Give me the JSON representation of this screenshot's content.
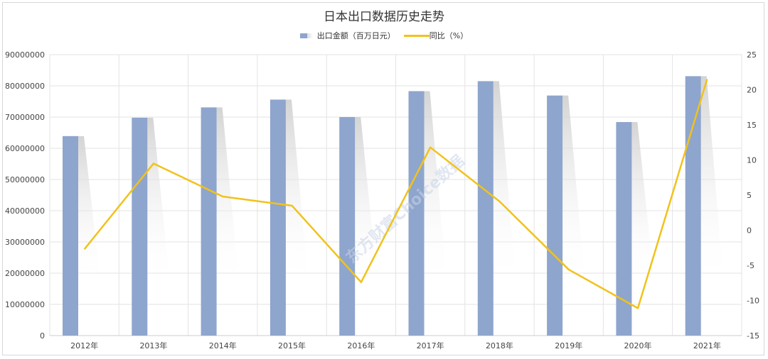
{
  "chart_data": {
    "type": "bar+line",
    "title": "日本出口数据历史走势",
    "categories": [
      "2012年",
      "2013年",
      "2014年",
      "2015年",
      "2016年",
      "2017年",
      "2018年",
      "2019年",
      "2020年",
      "2021年"
    ],
    "series": [
      {
        "name": "出口金额（百万日元）",
        "type": "bar",
        "axis": "left",
        "color": "#8ea5cd",
        "values": [
          63900000,
          69800000,
          73100000,
          75600000,
          70000000,
          78300000,
          81500000,
          76900000,
          68400000,
          83100000
        ]
      },
      {
        "name": "同比（%）",
        "type": "line",
        "axis": "right",
        "color": "#f1c21b",
        "values": [
          -2.7,
          9.5,
          4.8,
          3.5,
          -7.4,
          11.8,
          4.1,
          -5.6,
          -11.1,
          21.5
        ]
      }
    ],
    "left_axis": {
      "ylim": [
        0,
        90000000
      ],
      "ticks": [
        "0",
        "10000000",
        "20000000",
        "30000000",
        "40000000",
        "50000000",
        "60000000",
        "70000000",
        "80000000",
        "90000000"
      ]
    },
    "right_axis": {
      "ylim": [
        -15,
        25
      ],
      "ticks": [
        "-15",
        "-10",
        "-5",
        "0",
        "5",
        "10",
        "15",
        "20",
        "25"
      ]
    },
    "grid": true,
    "legend_position": "top",
    "watermark": "东方财富Choice数据"
  },
  "legend": {
    "bar_label": "出口金额（百万日元）",
    "line_label": "同比（%）"
  }
}
